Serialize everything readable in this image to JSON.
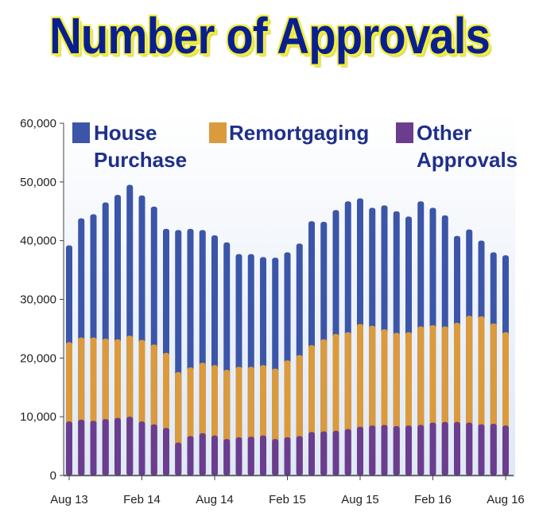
{
  "title": "Number of Approvals",
  "colors": {
    "title": "#0a1f8f",
    "title_shadow": "#f2ef3a",
    "house": "#3b55a8",
    "remortgaging": "#db9a3c",
    "other": "#6a3d8f",
    "legend_text": "#1f2f8a"
  },
  "chart_data": {
    "type": "bar",
    "title": "Number of Approvals",
    "xlabel": "",
    "ylabel": "",
    "ylim": [
      0,
      60000
    ],
    "y_ticks": [
      "0",
      "10,000",
      "20,000",
      "30,000",
      "40,000",
      "50,000",
      "60,000"
    ],
    "y_tick_values": [
      0,
      10000,
      20000,
      30000,
      40000,
      50000,
      60000
    ],
    "x_tick_labels": [
      "Aug 13",
      "Feb 14",
      "Aug 14",
      "Feb 15",
      "Aug 15",
      "Feb 16",
      "Aug 16"
    ],
    "x_tick_index": [
      0,
      6,
      12,
      18,
      24,
      30,
      36
    ],
    "grid": false,
    "legend_placement": "top",
    "categories": [
      "Aug 13",
      "Sep 13",
      "Oct 13",
      "Nov 13",
      "Dec 13",
      "Jan 14",
      "Feb 14",
      "Mar 14",
      "Apr 14",
      "May 14",
      "Jun 14",
      "Jul 14",
      "Aug 14",
      "Sep 14",
      "Oct 14",
      "Nov 14",
      "Dec 14",
      "Jan 15",
      "Feb 15",
      "Mar 15",
      "Apr 15",
      "May 15",
      "Jun 15",
      "Jul 15",
      "Aug 15",
      "Sep 15",
      "Oct 15",
      "Nov 15",
      "Dec 15",
      "Jan 16",
      "Feb 16",
      "Mar 16",
      "Apr 16",
      "May 16",
      "Jun 16",
      "Jul 16",
      "Aug 16"
    ],
    "series": [
      {
        "name": "House Purchase",
        "legend_lines": [
          "House",
          "Purchase"
        ],
        "color": "#3b55a8",
        "values": [
          39200,
          43800,
          44500,
          46500,
          47800,
          49500,
          47700,
          45800,
          42000,
          41800,
          42000,
          41800,
          40900,
          39700,
          37700,
          37700,
          37200,
          37100,
          38000,
          39500,
          43300,
          43200,
          45200,
          46700,
          47200,
          45600,
          46000,
          45000,
          44100,
          46700,
          45600,
          44300,
          40800,
          41900,
          40000,
          38000,
          37500
        ]
      },
      {
        "name": "Remortgaging",
        "legend_lines": [
          "Remortgaging"
        ],
        "color": "#db9a3c",
        "values": [
          22700,
          23500,
          23500,
          23300,
          23200,
          23800,
          23100,
          22300,
          20900,
          17600,
          18400,
          19200,
          18800,
          18000,
          18500,
          18500,
          18800,
          18200,
          19600,
          20500,
          22200,
          23200,
          24100,
          24400,
          25800,
          25500,
          24900,
          24300,
          24400,
          25400,
          25600,
          25400,
          26000,
          27200,
          27100,
          25900,
          24400
        ]
      },
      {
        "name": "Other Approvals",
        "legend_lines": [
          "Other",
          "Approvals"
        ],
        "color": "#6a3d8f",
        "values": [
          9200,
          9500,
          9300,
          9600,
          9800,
          10000,
          9200,
          8700,
          8100,
          5600,
          6700,
          7200,
          6800,
          6200,
          6500,
          6600,
          6800,
          6200,
          6500,
          6700,
          7400,
          7500,
          7600,
          7900,
          8300,
          8500,
          8600,
          8400,
          8500,
          8600,
          9000,
          9100,
          9100,
          9000,
          8700,
          8800,
          8500
        ]
      }
    ]
  }
}
